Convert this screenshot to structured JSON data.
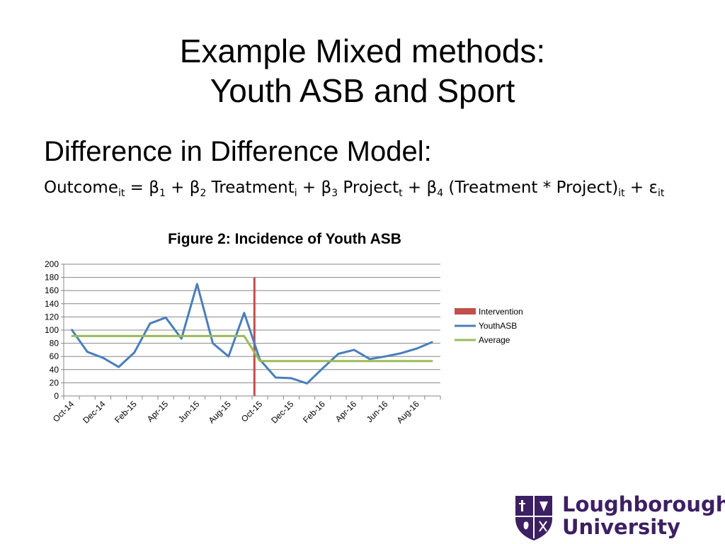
{
  "slide": {
    "title_line1": "Example Mixed methods:",
    "title_line2": "Youth ASB and Sport",
    "subheading": "Difference in Difference Model:"
  },
  "formula": {
    "outcome": "Outcome",
    "sub_outcome": "it",
    "eq_beta1": " = β",
    "sub_beta1": "1",
    "plus_beta2": " + β",
    "sub_beta2": "2",
    "treatment": " Treatment",
    "sub_treatment": "i",
    "plus_beta3": " + β",
    "sub_beta3": "3",
    "project": " Project",
    "sub_project": "t",
    "plus_beta4": " + β",
    "sub_beta4": "4",
    "interaction": " (Treatment * Project)",
    "sub_interaction": "it",
    "plus_epsilon": " + ε",
    "sub_epsilon": "it"
  },
  "logo": {
    "line1": "Loughborough",
    "line2": "University",
    "colors": {
      "purple": "#3d1f63",
      "white": "#ffffff"
    }
  },
  "chart_data": {
    "type": "line",
    "title": "Figure 2: Incidence of Youth ASB",
    "xlabel": "",
    "ylabel": "",
    "ylim": [
      0,
      200
    ],
    "yticks": [
      0,
      20,
      40,
      60,
      80,
      100,
      120,
      140,
      160,
      180,
      200
    ],
    "grid": true,
    "legend_position": "right",
    "categories": [
      "Oct-14",
      "Nov-14",
      "Dec-14",
      "Jan-15",
      "Feb-15",
      "Mar-15",
      "Apr-15",
      "May-15",
      "Jun-15",
      "Jul-15",
      "Aug-15",
      "Sep-15",
      "Oct-15",
      "Nov-15",
      "Dec-15",
      "Jan-16",
      "Feb-16",
      "Mar-16",
      "Apr-16",
      "May-16",
      "Jun-16",
      "Jul-16",
      "Aug-16",
      "Sep-16"
    ],
    "tick_labels": [
      "Oct-14",
      "Dec-14",
      "Feb-15",
      "Apr-15",
      "Jun-15",
      "Aug-15",
      "Oct-15",
      "Dec-15",
      "Feb-16",
      "Apr-16",
      "Jun-16",
      "Aug-16"
    ],
    "series": [
      {
        "name": "YouthASB",
        "color": "#4a7ebb",
        "values": [
          101,
          67,
          58,
          44,
          66,
          110,
          119,
          87,
          170,
          80,
          60,
          126,
          55,
          28,
          27,
          19,
          42,
          64,
          70,
          56,
          60,
          65,
          72,
          82
        ]
      },
      {
        "name": "Average",
        "color": "#9bbb59",
        "values": [
          91,
          91,
          91,
          91,
          91,
          91,
          91,
          91,
          91,
          91,
          91,
          91,
          53,
          53,
          53,
          53,
          53,
          53,
          53,
          53,
          53,
          53,
          53,
          53
        ]
      }
    ],
    "intervention": {
      "name": "Intervention",
      "color": "#c0504d",
      "position": 12.15,
      "value": 180
    }
  }
}
